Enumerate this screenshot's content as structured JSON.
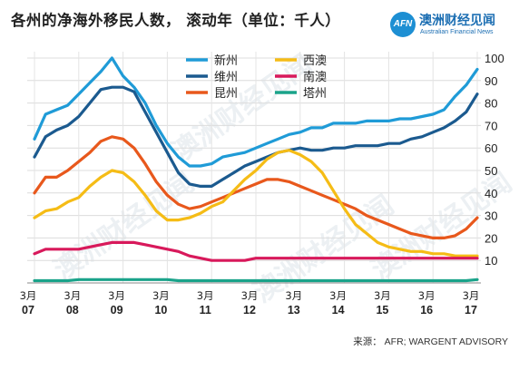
{
  "title": "各州的净海外移民人数， 滚动年（单位：千人）",
  "logo": {
    "mark": "AFN",
    "name_cn": "澳洲财经见闻",
    "name_en": "Australian Financial News",
    "watermark": "澳洲财经见闻",
    "color": "#1d8fd3"
  },
  "source": "来源： AFR; WARGENT ADVISORY",
  "chart_data": {
    "type": "line",
    "title": "各州的净海外移民人数， 滚动年（单位：千人）",
    "ylim": [
      0,
      100
    ],
    "y_ticks": [
      10,
      20,
      30,
      40,
      50,
      60,
      70,
      80,
      90,
      100
    ],
    "grid": true,
    "legend_position": "top-center",
    "x_tick_labels": [
      {
        "month": "3月",
        "year": "07"
      },
      {
        "month": "3月",
        "year": "08"
      },
      {
        "month": "3月",
        "year": "09"
      },
      {
        "month": "3月",
        "year": "10"
      },
      {
        "month": "3月",
        "year": "11"
      },
      {
        "month": "3月",
        "year": "12"
      },
      {
        "month": "3月",
        "year": "13"
      },
      {
        "month": "3月",
        "year": "14"
      },
      {
        "month": "3月",
        "year": "15"
      },
      {
        "month": "3月",
        "year": "16"
      },
      {
        "month": "3月",
        "year": "17"
      }
    ],
    "x_start": 2007.0,
    "x_end": 2017.0,
    "series": [
      {
        "name": "新州",
        "color": "#1f9bd7",
        "x": [
          2007.0,
          2007.25,
          2007.5,
          2007.75,
          2008.0,
          2008.25,
          2008.5,
          2008.75,
          2009.0,
          2009.25,
          2009.5,
          2009.75,
          2010.0,
          2010.25,
          2010.5,
          2010.75,
          2011.0,
          2011.25,
          2011.5,
          2011.75,
          2012.0,
          2012.25,
          2012.5,
          2012.75,
          2013.0,
          2013.25,
          2013.5,
          2013.75,
          2014.0,
          2014.25,
          2014.5,
          2014.75,
          2015.0,
          2015.25,
          2015.5,
          2015.75,
          2016.0,
          2016.25,
          2016.5,
          2016.75,
          2017.0
        ],
        "values": [
          64,
          75,
          77,
          79,
          84,
          89,
          94,
          100,
          92,
          87,
          80,
          70,
          62,
          56,
          52,
          52,
          53,
          56,
          57,
          58,
          60,
          62,
          64,
          66,
          67,
          69,
          69,
          71,
          71,
          71,
          72,
          72,
          72,
          73,
          73,
          74,
          75,
          77,
          83,
          88,
          95
        ]
      },
      {
        "name": "维州",
        "color": "#1b5a8f",
        "x": [
          2007.0,
          2007.25,
          2007.5,
          2007.75,
          2008.0,
          2008.25,
          2008.5,
          2008.75,
          2009.0,
          2009.25,
          2009.5,
          2009.75,
          2010.0,
          2010.25,
          2010.5,
          2010.75,
          2011.0,
          2011.25,
          2011.5,
          2011.75,
          2012.0,
          2012.25,
          2012.5,
          2012.75,
          2013.0,
          2013.25,
          2013.5,
          2013.75,
          2014.0,
          2014.25,
          2014.5,
          2014.75,
          2015.0,
          2015.25,
          2015.5,
          2015.75,
          2016.0,
          2016.25,
          2016.5,
          2016.75,
          2017.0
        ],
        "values": [
          56,
          65,
          68,
          70,
          74,
          80,
          86,
          87,
          87,
          85,
          76,
          67,
          58,
          49,
          44,
          43,
          43,
          46,
          49,
          52,
          54,
          56,
          58,
          59,
          60,
          59,
          59,
          60,
          60,
          61,
          61,
          61,
          62,
          62,
          64,
          65,
          67,
          69,
          72,
          76,
          84
        ]
      },
      {
        "name": "昆州",
        "color": "#e8581c",
        "x": [
          2007.0,
          2007.25,
          2007.5,
          2007.75,
          2008.0,
          2008.25,
          2008.5,
          2008.75,
          2009.0,
          2009.25,
          2009.5,
          2009.75,
          2010.0,
          2010.25,
          2010.5,
          2010.75,
          2011.0,
          2011.25,
          2011.5,
          2011.75,
          2012.0,
          2012.25,
          2012.5,
          2012.75,
          2013.0,
          2013.25,
          2013.5,
          2013.75,
          2014.0,
          2014.25,
          2014.5,
          2014.75,
          2015.0,
          2015.25,
          2015.5,
          2015.75,
          2016.0,
          2016.25,
          2016.5,
          2016.75,
          2017.0
        ],
        "values": [
          40,
          47,
          47,
          50,
          54,
          58,
          63,
          65,
          64,
          60,
          53,
          45,
          39,
          35,
          33,
          34,
          36,
          38,
          40,
          42,
          44,
          46,
          46,
          45,
          43,
          41,
          39,
          37,
          35,
          33,
          30,
          28,
          26,
          24,
          22,
          21,
          20,
          20,
          21,
          24,
          29
        ]
      },
      {
        "name": "西澳",
        "color": "#f5bc16",
        "x": [
          2007.0,
          2007.25,
          2007.5,
          2007.75,
          2008.0,
          2008.25,
          2008.5,
          2008.75,
          2009.0,
          2009.25,
          2009.5,
          2009.75,
          2010.0,
          2010.25,
          2010.5,
          2010.75,
          2011.0,
          2011.25,
          2011.5,
          2011.75,
          2012.0,
          2012.25,
          2012.5,
          2012.75,
          2013.0,
          2013.25,
          2013.5,
          2013.75,
          2014.0,
          2014.25,
          2014.5,
          2014.75,
          2015.0,
          2015.25,
          2015.5,
          2015.75,
          2016.0,
          2016.25,
          2016.5,
          2016.75,
          2017.0
        ],
        "values": [
          29,
          32,
          33,
          36,
          38,
          43,
          47,
          50,
          49,
          45,
          39,
          32,
          28,
          28,
          29,
          31,
          34,
          36,
          41,
          46,
          50,
          55,
          58,
          59,
          57,
          54,
          49,
          41,
          33,
          26,
          22,
          18,
          16,
          15,
          14,
          14,
          13,
          13,
          12,
          12,
          12
        ]
      },
      {
        "name": "南澳",
        "color": "#d8195b",
        "x": [
          2007.0,
          2007.25,
          2007.5,
          2007.75,
          2008.0,
          2008.25,
          2008.5,
          2008.75,
          2009.0,
          2009.25,
          2009.5,
          2009.75,
          2010.0,
          2010.25,
          2010.5,
          2010.75,
          2011.0,
          2011.25,
          2011.5,
          2011.75,
          2012.0,
          2012.25,
          2012.5,
          2012.75,
          2013.0,
          2013.25,
          2013.5,
          2013.75,
          2014.0,
          2014.25,
          2014.5,
          2014.75,
          2015.0,
          2015.25,
          2015.5,
          2015.75,
          2016.0,
          2016.25,
          2016.5,
          2016.75,
          2017.0
        ],
        "values": [
          13,
          15,
          15,
          15,
          15,
          16,
          17,
          18,
          18,
          18,
          17,
          16,
          15,
          14,
          12,
          11,
          10,
          10,
          10,
          10,
          11,
          11,
          11,
          11,
          11,
          11,
          11,
          11,
          11,
          11,
          11,
          11,
          11,
          11,
          11,
          11,
          11,
          11,
          11,
          11,
          11
        ]
      },
      {
        "name": "塔州",
        "color": "#1aa38a",
        "x": [
          2007.0,
          2007.25,
          2007.5,
          2007.75,
          2008.0,
          2008.25,
          2008.5,
          2008.75,
          2009.0,
          2009.25,
          2009.5,
          2009.75,
          2010.0,
          2010.25,
          2010.5,
          2010.75,
          2011.0,
          2011.25,
          2011.5,
          2011.75,
          2012.0,
          2012.25,
          2012.5,
          2012.75,
          2013.0,
          2013.25,
          2013.5,
          2013.75,
          2014.0,
          2014.25,
          2014.5,
          2014.75,
          2015.0,
          2015.25,
          2015.5,
          2015.75,
          2016.0,
          2016.25,
          2016.5,
          2016.75,
          2017.0
        ],
        "values": [
          1,
          1,
          1,
          1,
          1.5,
          1.5,
          1.5,
          1.5,
          1.5,
          1.5,
          1.5,
          1.5,
          1.5,
          1,
          1,
          1,
          1,
          1,
          1,
          1,
          1,
          1,
          1,
          1,
          1,
          1,
          1,
          1,
          1,
          1,
          1,
          1,
          1,
          1,
          1,
          1,
          1,
          1,
          1,
          1,
          1.5
        ]
      }
    ]
  }
}
